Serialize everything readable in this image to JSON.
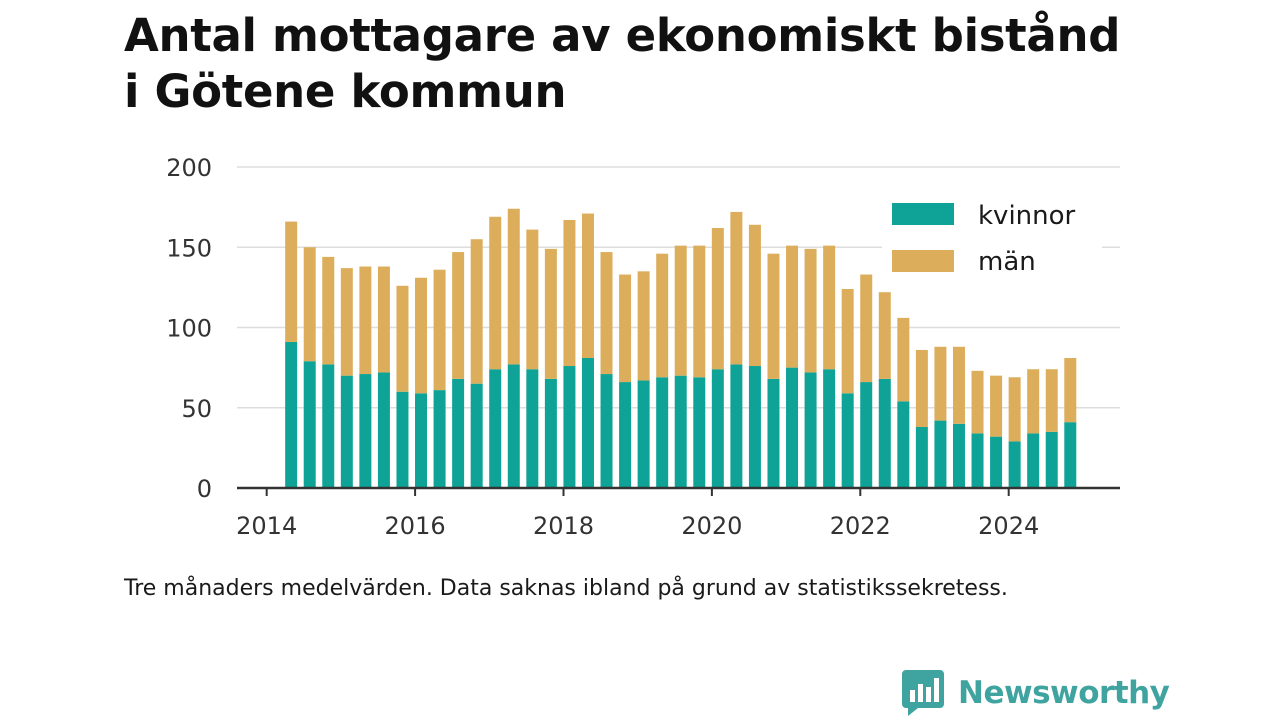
{
  "title_lines": [
    "Antal mottagare av ekonomiskt bistånd",
    "i Götene kommun"
  ],
  "caption": "Tre månaders medelvärden. Data saknas ibland på grund av statistikssekretess.",
  "brand": {
    "name": "Newsworthy",
    "logo_icon": "newsworthy-chart-bubble-icon"
  },
  "colors": {
    "kvinnor": "#0fa398",
    "man": "#dcae5c",
    "grid": "#dddddd",
    "axis": "#333333",
    "brand": "#3fa3a0"
  },
  "chart_data": {
    "type": "bar",
    "stacked": true,
    "title": "Antal mottagare av ekonomiskt bistånd i Götene kommun",
    "xlabel": "",
    "ylabel": "",
    "ylim": [
      0,
      200
    ],
    "xlim": [
      2013.6,
      2025.5
    ],
    "yticks": [
      0,
      50,
      100,
      150,
      200
    ],
    "xticks": [
      2014,
      2016,
      2018,
      2020,
      2022,
      2024
    ],
    "grid": true,
    "legend_position": "top-right",
    "x": [
      2014.33,
      2014.58,
      2014.83,
      2015.08,
      2015.33,
      2015.58,
      2015.83,
      2016.08,
      2016.33,
      2016.58,
      2016.83,
      2017.08,
      2017.33,
      2017.58,
      2017.83,
      2018.08,
      2018.33,
      2018.58,
      2018.83,
      2019.08,
      2019.33,
      2019.58,
      2019.83,
      2020.08,
      2020.33,
      2020.58,
      2020.83,
      2021.08,
      2021.33,
      2021.58,
      2021.83,
      2022.08,
      2022.33,
      2022.58,
      2022.83,
      2023.08,
      2023.33,
      2023.58,
      2023.83,
      2024.08,
      2024.33,
      2024.58,
      2024.83
    ],
    "series": [
      {
        "name": "kvinnor",
        "color": "#0fa398",
        "values": [
          91,
          79,
          77,
          70,
          71,
          72,
          60,
          59,
          61,
          68,
          65,
          74,
          77,
          74,
          68,
          76,
          81,
          71,
          66,
          67,
          69,
          70,
          69,
          74,
          77,
          76,
          68,
          75,
          72,
          74,
          59,
          66,
          68,
          54,
          38,
          42,
          40,
          34,
          32,
          29,
          34,
          35,
          41
        ]
      },
      {
        "name": "män",
        "color": "#dcae5c",
        "values": [
          75,
          71,
          67,
          67,
          67,
          66,
          66,
          72,
          75,
          79,
          90,
          95,
          97,
          87,
          81,
          91,
          90,
          76,
          67,
          68,
          77,
          81,
          82,
          88,
          95,
          88,
          78,
          76,
          77,
          77,
          65,
          67,
          54,
          52,
          48,
          46,
          48,
          39,
          38,
          40,
          40,
          39,
          40
        ]
      }
    ]
  }
}
